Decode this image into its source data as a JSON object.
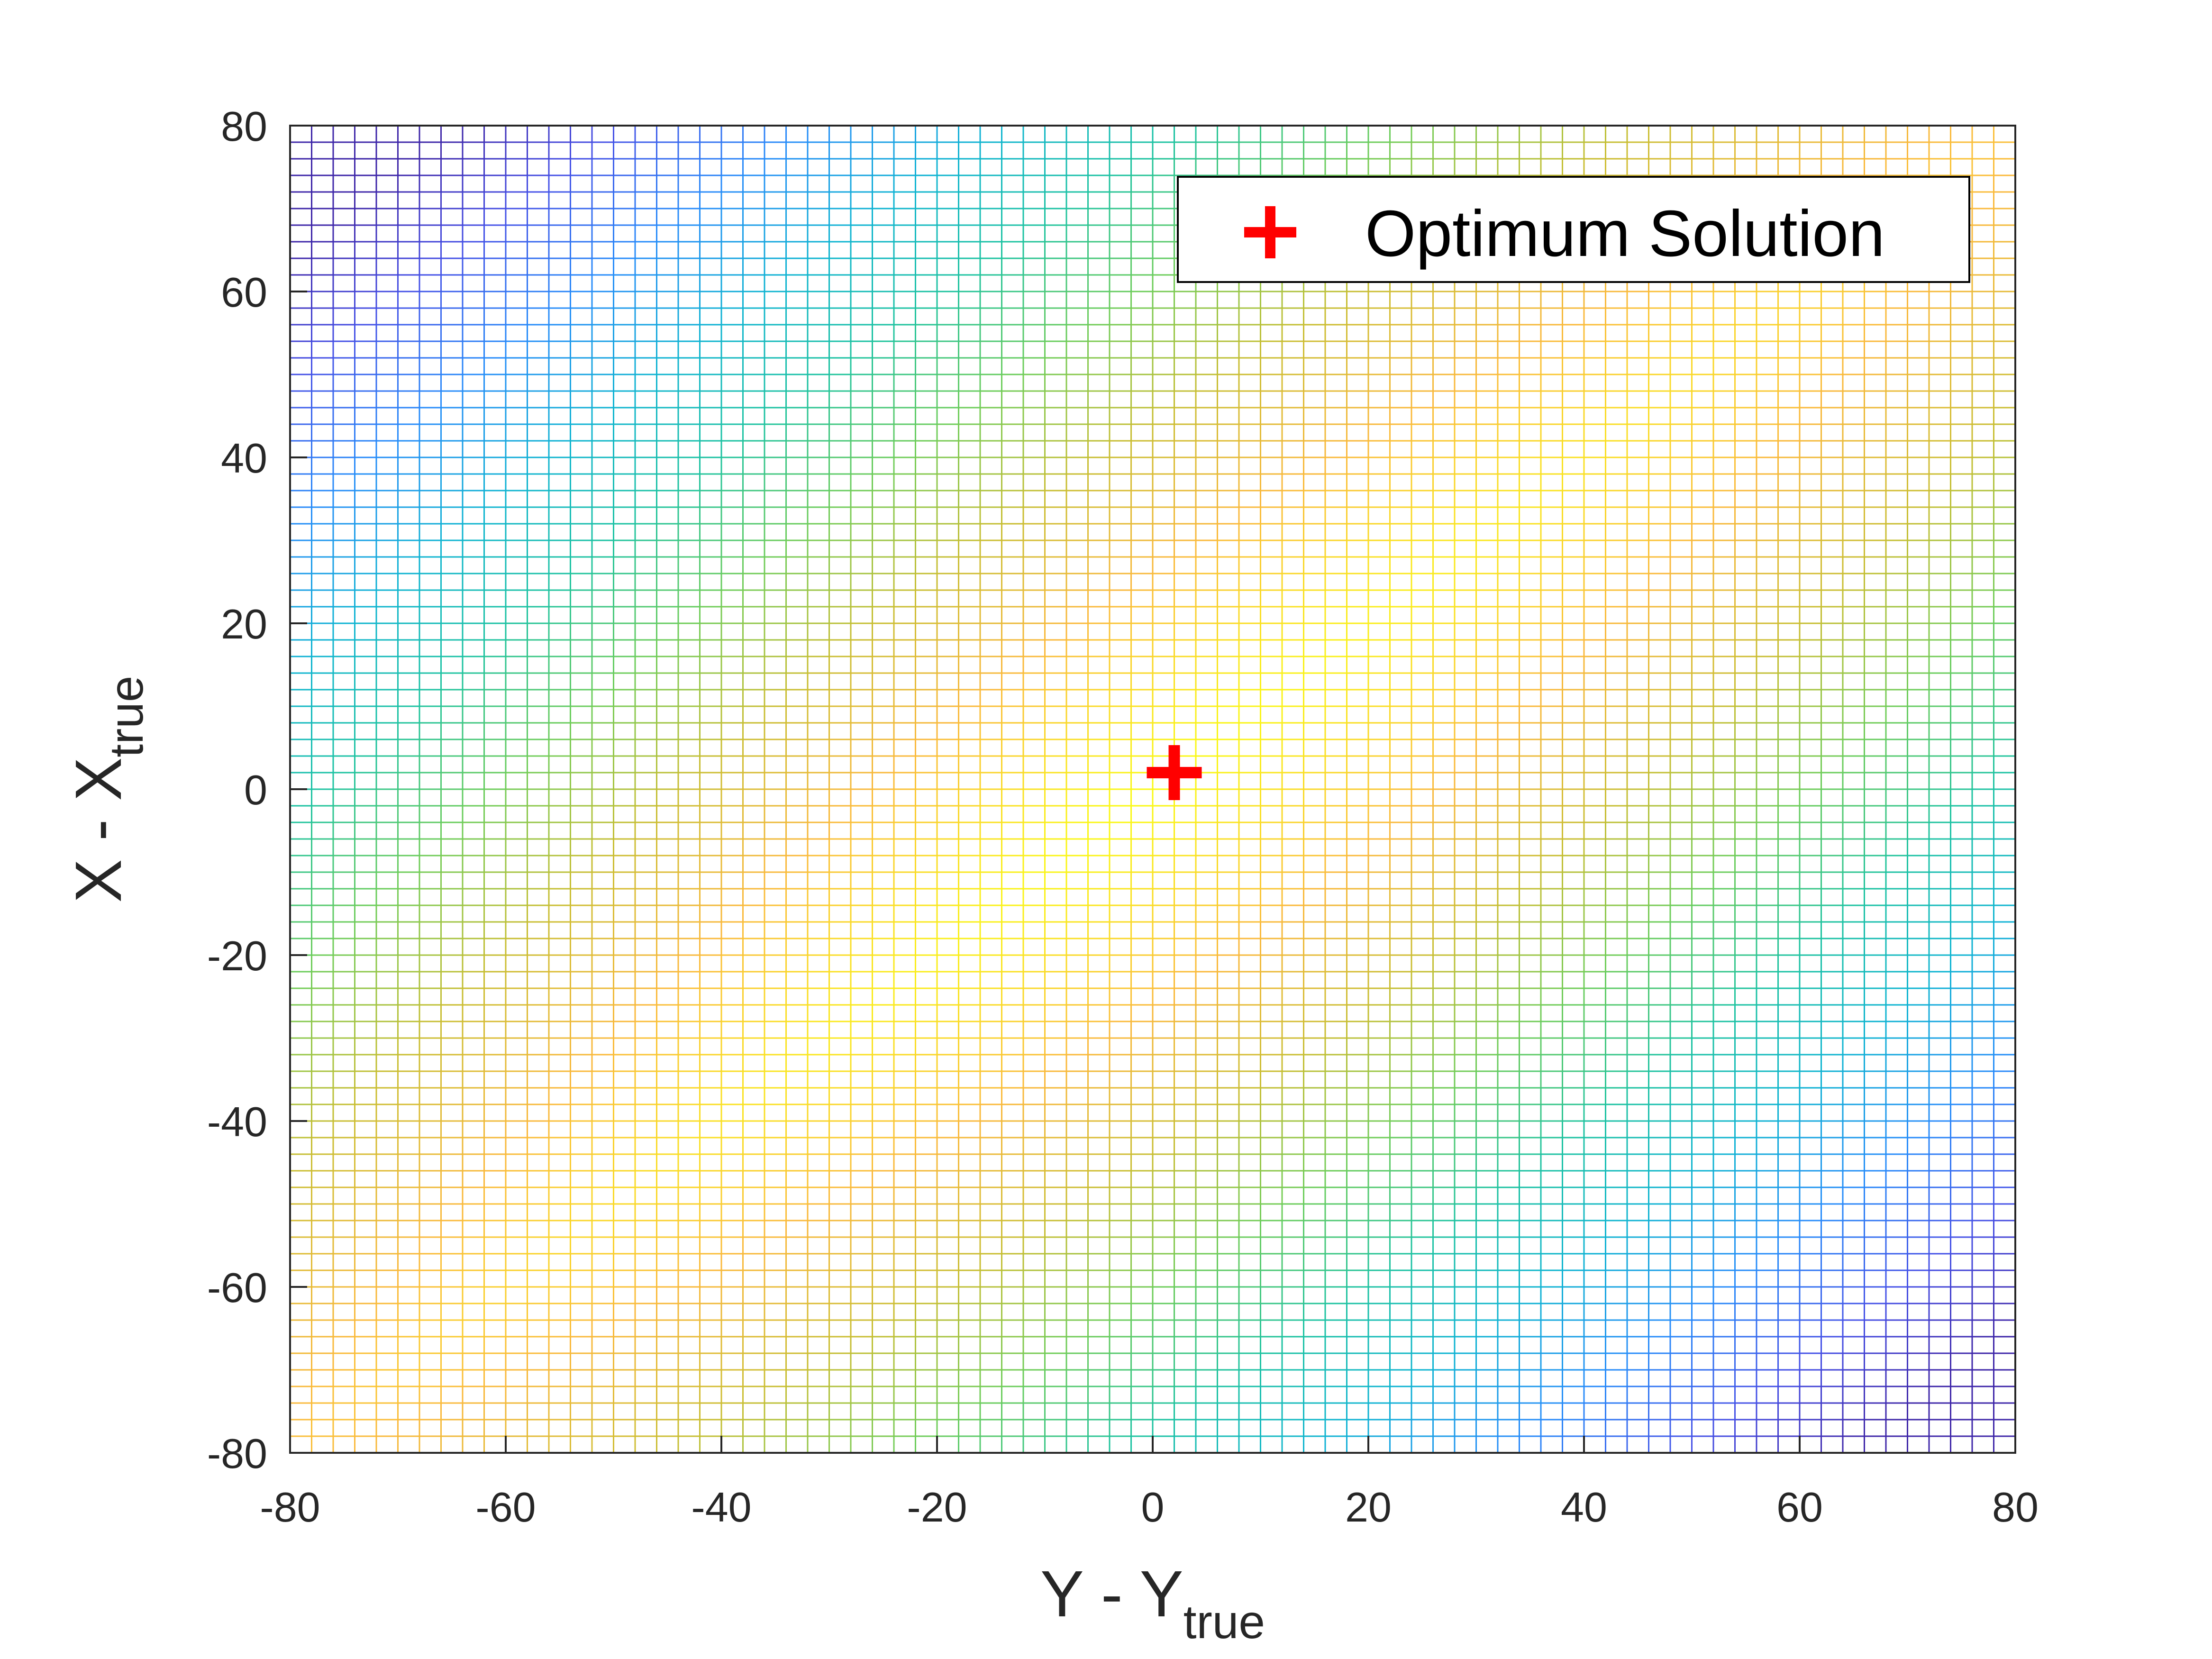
{
  "chart_data": {
    "type": "heatmap",
    "plot_style": "mesh-grid surface viewed from above",
    "xlabel": {
      "main": "Y - Y",
      "subscript": "true"
    },
    "ylabel": {
      "main": "X - X",
      "subscript": "true"
    },
    "xlim": [
      -80,
      80
    ],
    "ylim": [
      -80,
      80
    ],
    "x_ticks": [
      "-80",
      "-60",
      "-40",
      "-20",
      "0",
      "20",
      "40",
      "60",
      "80"
    ],
    "y_ticks": [
      "80",
      "60",
      "40",
      "20",
      "0",
      "-20",
      "-40",
      "-60",
      "-80"
    ],
    "grid_spacing": 2,
    "colormap": "parula",
    "surface_trend": "maximum (yellow) near the origin, ridge of high values along the x = y diagonal, minima (dark blue) at the top-left (-80, 80) and bottom-right (80, -80) corners",
    "legend": {
      "position": "top-right",
      "entries": [
        {
          "label": "Optimum Solution",
          "marker": "plus",
          "color": "#ff0000"
        }
      ]
    },
    "points": [
      {
        "series": "Optimum Solution",
        "x": 2,
        "y": 2
      }
    ]
  }
}
